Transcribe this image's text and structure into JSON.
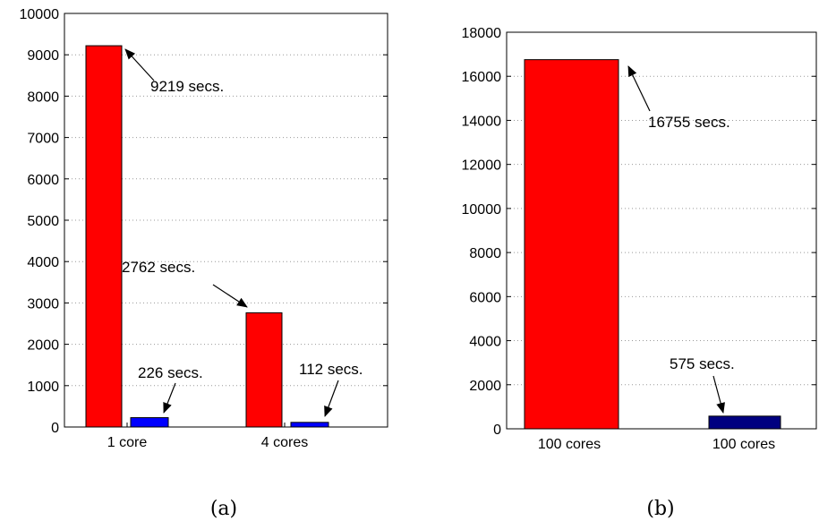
{
  "chart_data": [
    {
      "type": "bar",
      "caption": "(a)",
      "categories": [
        "1 core",
        "4 cores"
      ],
      "series": [
        {
          "values": [
            9219,
            2762
          ],
          "color": "#ff0000"
        },
        {
          "values": [
            226,
            112
          ],
          "color": "#0000ff"
        }
      ],
      "ylim": [
        0,
        10000
      ],
      "yticks": [
        "0",
        "1000",
        "2000",
        "3000",
        "4000",
        "5000",
        "6000",
        "7000",
        "8000",
        "9000",
        "10000"
      ],
      "grid": true,
      "annotations": [
        "9219 secs.",
        "226 secs.",
        "2762 secs.",
        "112 secs."
      ]
    },
    {
      "type": "bar",
      "caption": "(b)",
      "categories": [
        "100 cores",
        "100 cores"
      ],
      "series": [
        {
          "values": [
            16755,
            575
          ],
          "colors": [
            "#ff0000",
            "#000080"
          ]
        }
      ],
      "ylim": [
        0,
        18000
      ],
      "yticks": [
        "0",
        "2000",
        "4000",
        "6000",
        "8000",
        "10000",
        "12000",
        "14000",
        "16000",
        "18000"
      ],
      "grid": true,
      "annotations": [
        "16755 secs.",
        "575 secs."
      ]
    }
  ]
}
